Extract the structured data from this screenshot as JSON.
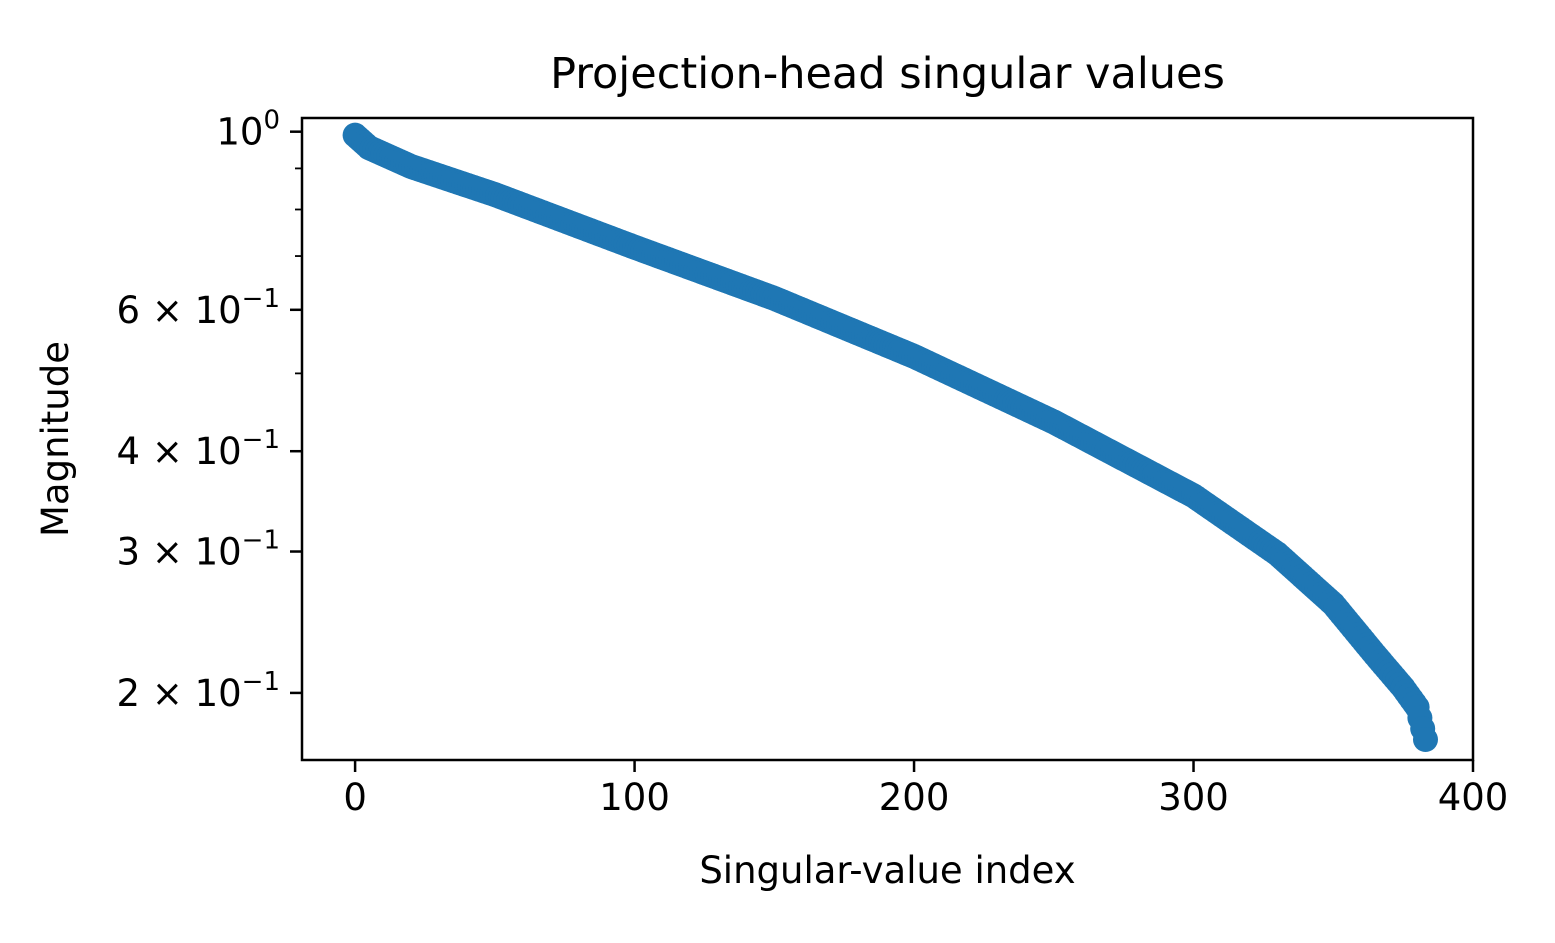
{
  "chart_data": {
    "type": "scatter",
    "title": "Projection-head singular values",
    "xlabel": "Singular-value index",
    "ylabel": "Magnitude",
    "xlim": [
      -19,
      400
    ],
    "ylim": [
      0.165,
      1.04
    ],
    "yscale": "log",
    "grid": false,
    "marker_color": "#1f77b4",
    "x_ticks": [
      {
        "value": 0,
        "label": "0"
      },
      {
        "value": 100,
        "label": "100"
      },
      {
        "value": 200,
        "label": "200"
      },
      {
        "value": 300,
        "label": "300"
      },
      {
        "value": 400,
        "label": "400"
      }
    ],
    "y_ticks": [
      {
        "value": 1.0,
        "mant": "",
        "exp": "0"
      },
      {
        "value": 0.6,
        "mant": "6",
        "exp": "−1"
      },
      {
        "value": 0.4,
        "mant": "4",
        "exp": "−1"
      },
      {
        "value": 0.3,
        "mant": "3",
        "exp": "−1"
      },
      {
        "value": 0.2,
        "mant": "2",
        "exp": "−1"
      }
    ],
    "y_tick_base": "10",
    "y_tick_times": "×",
    "series": [
      {
        "points": [
          {
            "x": 0,
            "y": 0.99
          },
          {
            "x": 5,
            "y": 0.955
          },
          {
            "x": 20,
            "y": 0.905
          },
          {
            "x": 50,
            "y": 0.835
          },
          {
            "x": 100,
            "y": 0.718
          },
          {
            "x": 150,
            "y": 0.62
          },
          {
            "x": 200,
            "y": 0.525
          },
          {
            "x": 250,
            "y": 0.435
          },
          {
            "x": 300,
            "y": 0.352
          },
          {
            "x": 330,
            "y": 0.298
          },
          {
            "x": 350,
            "y": 0.258
          },
          {
            "x": 365,
            "y": 0.223
          },
          {
            "x": 375,
            "y": 0.203
          },
          {
            "x": 380,
            "y": 0.192
          },
          {
            "x": 383,
            "y": 0.175
          }
        ]
      }
    ]
  }
}
